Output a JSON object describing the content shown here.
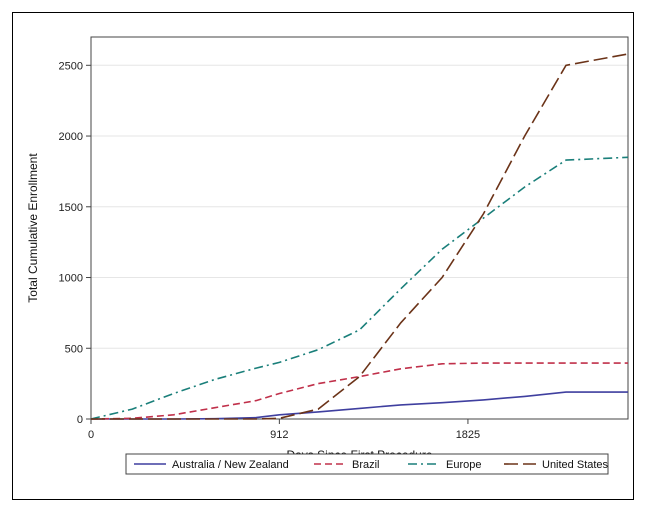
{
  "chart_data": {
    "type": "line",
    "title": "",
    "xlabel": "Days Since First Procedure",
    "ylabel": "Total Cumulative Enrollment",
    "xlim": [
      0,
      2600
    ],
    "ylim": [
      0,
      2700
    ],
    "x_ticks": [
      0,
      912,
      1825
    ],
    "y_ticks": [
      0,
      500,
      1000,
      1500,
      2000,
      2500
    ],
    "grid": true,
    "legend_position": "bottom",
    "series": [
      {
        "name": "Australia / New Zealand",
        "color": "#3f3f9f",
        "dash": "solid",
        "x": [
          0,
          200,
          400,
          600,
          800,
          912,
          1100,
          1300,
          1500,
          1700,
          1900,
          2100,
          2300,
          2600
        ],
        "values": [
          0,
          0,
          0,
          2,
          10,
          30,
          50,
          75,
          100,
          115,
          135,
          160,
          190,
          190
        ]
      },
      {
        "name": "Brazil",
        "color": "#c0304a",
        "dash": "dashed",
        "x": [
          0,
          200,
          400,
          600,
          800,
          912,
          1100,
          1300,
          1500,
          1700,
          1900,
          2100,
          2300,
          2600
        ],
        "values": [
          0,
          5,
          30,
          80,
          130,
          180,
          250,
          300,
          355,
          390,
          395,
          395,
          395,
          395
        ]
      },
      {
        "name": "Europe",
        "color": "#1a7f7a",
        "dash": "dashdot",
        "x": [
          0,
          200,
          400,
          600,
          800,
          912,
          1100,
          1300,
          1500,
          1700,
          1900,
          2100,
          2300,
          2600
        ],
        "values": [
          0,
          70,
          180,
          280,
          360,
          400,
          490,
          630,
          920,
          1200,
          1420,
          1640,
          1830,
          1850
        ]
      },
      {
        "name": "United States",
        "color": "#6b3318",
        "dash": "longdash",
        "x": [
          0,
          200,
          400,
          600,
          800,
          912,
          1100,
          1300,
          1500,
          1700,
          1900,
          2100,
          2300,
          2600
        ],
        "values": [
          0,
          0,
          0,
          0,
          0,
          5,
          70,
          300,
          680,
          1000,
          1450,
          2000,
          2500,
          2580
        ]
      }
    ]
  }
}
